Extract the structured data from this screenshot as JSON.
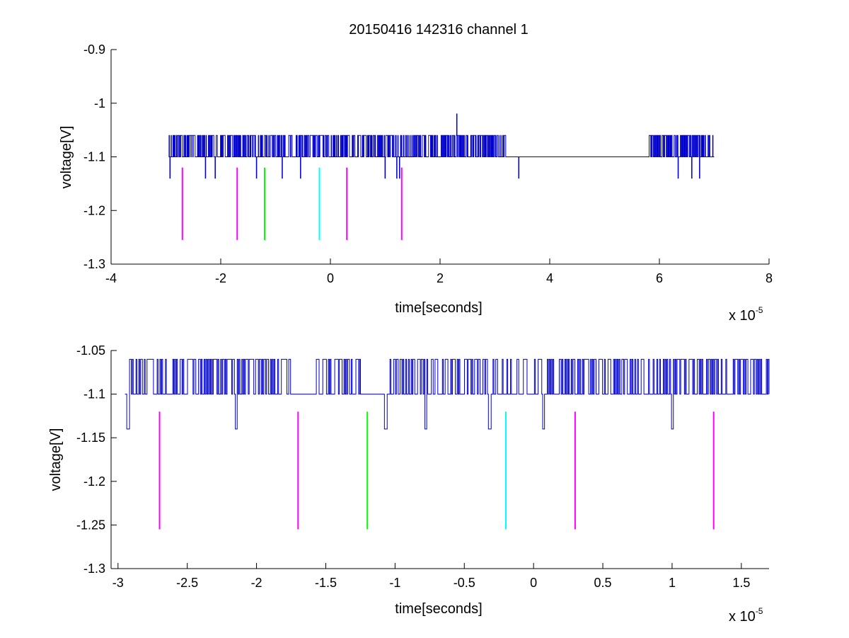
{
  "title": "20150416 142316 channel 1",
  "colors": {
    "trace": "#0000cc",
    "magenta": "#ff00ff",
    "green": "#00ff00",
    "cyan": "#00ffff",
    "axis": "#000000"
  },
  "chart_data": [
    {
      "type": "line",
      "title": "20150416 142316 channel 1",
      "xlabel": "time[seconds]",
      "ylabel": "voltage[V]",
      "x_scale_label": "x 10",
      "x_scale_exponent": "-5",
      "xlim": [
        -4,
        8
      ],
      "ylim": [
        -1.3,
        -0.9
      ],
      "xticks": [
        -4,
        -2,
        0,
        2,
        4,
        6,
        8
      ],
      "xtick_labels": [
        "-4",
        "-2",
        "0",
        "2",
        "4",
        "6",
        "8"
      ],
      "yticks": [
        -1.3,
        -1.2,
        -1.1,
        -1.0,
        -0.9
      ],
      "ytick_labels": [
        "-1.3",
        "-1.2",
        "-1.1",
        "-1",
        "-0.9"
      ],
      "grid": false,
      "trace_xrange": [
        -2.95,
        7.0
      ],
      "trace_levels": [
        -1.06,
        -1.1,
        -1.14
      ],
      "spike": {
        "x": 2.3,
        "y": -1.02
      },
      "markers": [
        {
          "x": -2.7,
          "y0": -1.255,
          "y1": -1.12,
          "color": "magenta"
        },
        {
          "x": -1.7,
          "y0": -1.255,
          "y1": -1.12,
          "color": "magenta"
        },
        {
          "x": -1.2,
          "y0": -1.255,
          "y1": -1.12,
          "color": "green"
        },
        {
          "x": -0.2,
          "y0": -1.255,
          "y1": -1.12,
          "color": "cyan"
        },
        {
          "x": 0.3,
          "y0": -1.255,
          "y1": -1.12,
          "color": "magenta"
        },
        {
          "x": 1.3,
          "y0": -1.255,
          "y1": -1.12,
          "color": "magenta"
        }
      ]
    },
    {
      "type": "line",
      "title": "",
      "xlabel": "time[seconds]",
      "ylabel": "voltage[V]",
      "x_scale_label": "x 10",
      "x_scale_exponent": "-5",
      "xlim": [
        -3.05,
        1.7
      ],
      "ylim": [
        -1.3,
        -1.05
      ],
      "xticks": [
        -3,
        -2.5,
        -2,
        -1.5,
        -1,
        -0.5,
        0,
        0.5,
        1,
        1.5
      ],
      "xtick_labels": [
        "-3",
        "-2.5",
        "-2",
        "-1.5",
        "-1",
        "-0.5",
        "0",
        "0.5",
        "1",
        "1.5"
      ],
      "yticks": [
        -1.3,
        -1.25,
        -1.2,
        -1.15,
        -1.1,
        -1.05
      ],
      "ytick_labels": [
        "-1.3",
        "-1.25",
        "-1.2",
        "-1.15",
        "-1.1",
        "-1.05"
      ],
      "grid": false,
      "trace_xrange": [
        -2.95,
        1.7
      ],
      "trace_levels": [
        -1.06,
        -1.1,
        -1.14
      ],
      "dips": [
        -2.93,
        -2.15,
        -1.07,
        -0.78,
        -0.32,
        0.07,
        1.0
      ],
      "markers": [
        {
          "x": -2.7,
          "y0": -1.255,
          "y1": -1.12,
          "color": "magenta"
        },
        {
          "x": -1.7,
          "y0": -1.255,
          "y1": -1.12,
          "color": "magenta"
        },
        {
          "x": -1.2,
          "y0": -1.255,
          "y1": -1.12,
          "color": "green"
        },
        {
          "x": -0.2,
          "y0": -1.255,
          "y1": -1.12,
          "color": "cyan"
        },
        {
          "x": 0.3,
          "y0": -1.255,
          "y1": -1.12,
          "color": "magenta"
        },
        {
          "x": 1.3,
          "y0": -1.255,
          "y1": -1.12,
          "color": "magenta"
        }
      ]
    }
  ]
}
